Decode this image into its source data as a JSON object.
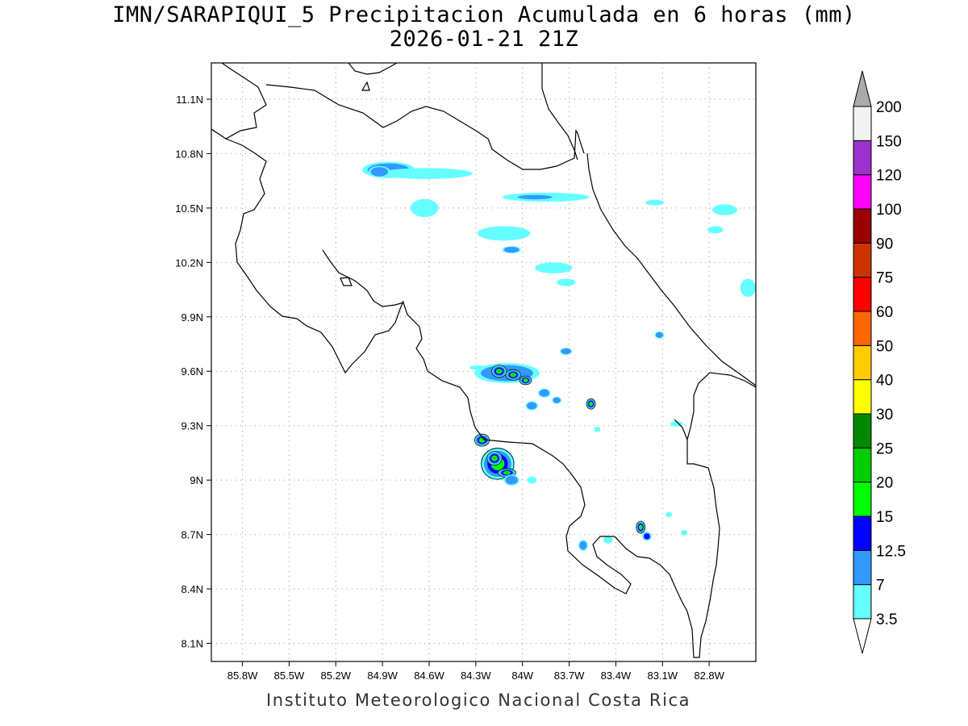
{
  "title": {
    "line1": "IMN/SARAPIQUI_5 Precipitacion Acumulada en 6 horas (mm)",
    "line2": "2026-01-21 21Z"
  },
  "footer": "Instituto Meteorologico Nacional Costa Rica",
  "chart_data": {
    "type": "heatmap",
    "xlim": [
      -86.0,
      -82.5
    ],
    "ylim": [
      8.0,
      11.3
    ],
    "x_ticks": [
      -85.8,
      -85.5,
      -85.2,
      -84.9,
      -84.6,
      -84.3,
      -84.0,
      -83.7,
      -83.4,
      -83.1,
      -82.8
    ],
    "x_tick_labels": [
      "85.8W",
      "85.5W",
      "85.2W",
      "84.9W",
      "84.6W",
      "84.3W",
      "84W",
      "83.7W",
      "83.4W",
      "83.1W",
      "82.8W"
    ],
    "y_ticks": [
      8.1,
      8.4,
      8.7,
      9.0,
      9.3,
      9.6,
      9.9,
      10.2,
      10.5,
      10.8,
      11.1
    ],
    "y_tick_labels": [
      "8.1N",
      "8.4N",
      "8.7N",
      "9N",
      "9.3N",
      "9.6N",
      "9.9N",
      "10.2N",
      "10.5N",
      "10.8N",
      "11.1N"
    ],
    "grid": true,
    "colorbar": {
      "levels": [
        "3.5",
        "7",
        "12.5",
        "15",
        "20",
        "25",
        "30",
        "40",
        "50",
        "60",
        "75",
        "90",
        "100",
        "120",
        "150",
        "200"
      ],
      "colors": [
        "#66ffff",
        "#3399ff",
        "#0000ff",
        "#00ff00",
        "#00cc00",
        "#008800",
        "#ffff00",
        "#ffcc00",
        "#ff6600",
        "#ff0000",
        "#cc3300",
        "#990000",
        "#ff00ff",
        "#9933cc",
        "#f2f2f2",
        "#aaaaaa"
      ]
    },
    "precip_cells": [
      {
        "lon": -84.86,
        "lat": 10.71,
        "rx": 0.17,
        "ry": 0.045,
        "level": 1
      },
      {
        "lon": -84.62,
        "lat": 10.69,
        "rx": 0.3,
        "ry": 0.03,
        "level": 0
      },
      {
        "lon": -84.92,
        "lat": 10.7,
        "rx": 0.07,
        "ry": 0.032,
        "level": 1
      },
      {
        "lon": -84.63,
        "lat": 10.5,
        "rx": 0.09,
        "ry": 0.05,
        "level": 0
      },
      {
        "lon": -83.85,
        "lat": 10.56,
        "rx": 0.28,
        "ry": 0.025,
        "level": 0
      },
      {
        "lon": -83.92,
        "lat": 10.56,
        "rx": 0.14,
        "ry": 0.015,
        "level": 1
      },
      {
        "lon": -84.12,
        "lat": 10.36,
        "rx": 0.17,
        "ry": 0.04,
        "level": 0
      },
      {
        "lon": -84.07,
        "lat": 10.27,
        "rx": 0.06,
        "ry": 0.02,
        "level": 1
      },
      {
        "lon": -83.8,
        "lat": 10.17,
        "rx": 0.12,
        "ry": 0.03,
        "level": 0
      },
      {
        "lon": -83.72,
        "lat": 10.09,
        "rx": 0.06,
        "ry": 0.02,
        "level": 0
      },
      {
        "lon": -83.15,
        "lat": 10.53,
        "rx": 0.06,
        "ry": 0.015,
        "level": 0
      },
      {
        "lon": -82.7,
        "lat": 10.49,
        "rx": 0.08,
        "ry": 0.03,
        "level": 0
      },
      {
        "lon": -82.76,
        "lat": 10.38,
        "rx": 0.05,
        "ry": 0.02,
        "level": 0
      },
      {
        "lon": -82.55,
        "lat": 10.06,
        "rx": 0.05,
        "ry": 0.05,
        "level": 0
      },
      {
        "lon": -84.1,
        "lat": 9.59,
        "rx": 0.21,
        "ry": 0.055,
        "level": 1
      },
      {
        "lon": -84.15,
        "lat": 9.6,
        "rx": 0.05,
        "ry": 0.035,
        "level": 4
      },
      {
        "lon": -84.06,
        "lat": 9.58,
        "rx": 0.05,
        "ry": 0.03,
        "level": 4
      },
      {
        "lon": -83.98,
        "lat": 9.55,
        "rx": 0.04,
        "ry": 0.025,
        "level": 3
      },
      {
        "lon": -84.29,
        "lat": 9.62,
        "rx": 0.05,
        "ry": 0.012,
        "level": 0
      },
      {
        "lon": -83.86,
        "lat": 9.48,
        "rx": 0.04,
        "ry": 0.025,
        "level": 1
      },
      {
        "lon": -83.94,
        "lat": 9.41,
        "rx": 0.04,
        "ry": 0.025,
        "level": 1
      },
      {
        "lon": -83.78,
        "lat": 9.44,
        "rx": 0.03,
        "ry": 0.02,
        "level": 1
      },
      {
        "lon": -83.72,
        "lat": 9.71,
        "rx": 0.04,
        "ry": 0.02,
        "level": 1
      },
      {
        "lon": -83.56,
        "lat": 9.42,
        "rx": 0.03,
        "ry": 0.03,
        "level": 3
      },
      {
        "lon": -83.52,
        "lat": 9.28,
        "rx": 0.02,
        "ry": 0.015,
        "level": 0
      },
      {
        "lon": -83.12,
        "lat": 9.8,
        "rx": 0.03,
        "ry": 0.02,
        "level": 1
      },
      {
        "lon": -83.01,
        "lat": 9.31,
        "rx": 0.04,
        "ry": 0.015,
        "level": 0
      },
      {
        "lon": -84.26,
        "lat": 9.22,
        "rx": 0.05,
        "ry": 0.035,
        "level": 3
      },
      {
        "lon": -84.16,
        "lat": 9.09,
        "rx": 0.11,
        "ry": 0.09,
        "level": 3
      },
      {
        "lon": -84.18,
        "lat": 9.12,
        "rx": 0.05,
        "ry": 0.04,
        "level": 4
      },
      {
        "lon": -84.1,
        "lat": 9.04,
        "rx": 0.06,
        "ry": 0.025,
        "level": 4
      },
      {
        "lon": -84.07,
        "lat": 9.0,
        "rx": 0.05,
        "ry": 0.03,
        "level": 1
      },
      {
        "lon": -83.94,
        "lat": 9.0,
        "rx": 0.03,
        "ry": 0.02,
        "level": 0
      },
      {
        "lon": -83.24,
        "lat": 8.74,
        "rx": 0.03,
        "ry": 0.035,
        "level": 3
      },
      {
        "lon": -83.2,
        "lat": 8.69,
        "rx": 0.03,
        "ry": 0.025,
        "level": 2
      },
      {
        "lon": -83.61,
        "lat": 8.64,
        "rx": 0.03,
        "ry": 0.03,
        "level": 1
      },
      {
        "lon": -83.45,
        "lat": 8.67,
        "rx": 0.03,
        "ry": 0.02,
        "level": 0
      },
      {
        "lon": -83.06,
        "lat": 8.81,
        "rx": 0.02,
        "ry": 0.015,
        "level": 0
      },
      {
        "lon": -82.96,
        "lat": 8.71,
        "rx": 0.02,
        "ry": 0.015,
        "level": 0
      }
    ]
  }
}
